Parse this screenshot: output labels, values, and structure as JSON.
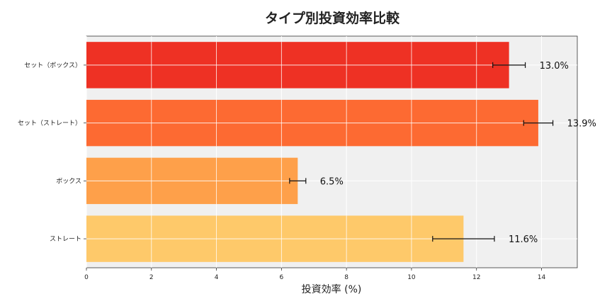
{
  "chart_data": {
    "type": "bar",
    "orientation": "horizontal",
    "title": "タイプ別投資効率比較",
    "xlabel": "投資効率 (%)",
    "ylabel": "",
    "categories": [
      "セット（ボックス）",
      "セット（ストレート）",
      "ボックス",
      "ストレート"
    ],
    "values": [
      13.0,
      13.9,
      6.5,
      11.6
    ],
    "errors": [
      0.5,
      0.45,
      0.25,
      0.95
    ],
    "data_labels": [
      "13.0%",
      "13.9%",
      "6.5%",
      "11.6%"
    ],
    "colors": [
      "#ee3124",
      "#fd6a32",
      "#fea04a",
      "#fec96a"
    ],
    "xlim": [
      0,
      15.1
    ],
    "xticks": [
      0,
      2,
      4,
      6,
      8,
      10,
      12,
      14
    ],
    "grid": true,
    "background": "#f0f0f0",
    "legend": "none"
  }
}
